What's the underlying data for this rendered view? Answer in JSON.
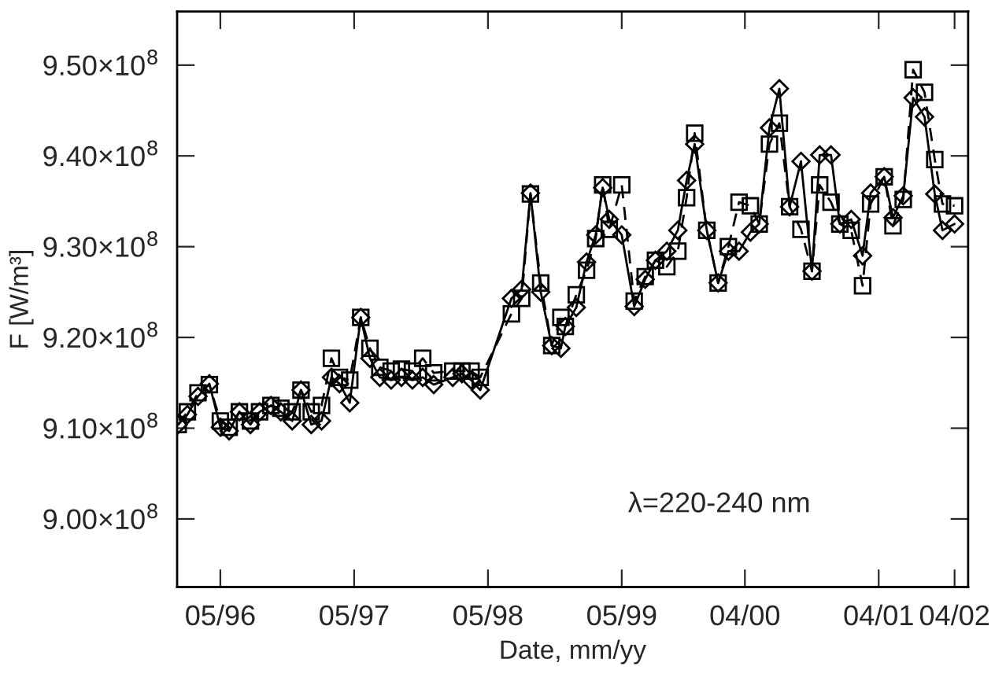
{
  "chart_data": {
    "type": "line",
    "xlabel": "Date, mm/yy",
    "ylabel": "F [W/m³]",
    "annotations": [
      "λ=220-240 nm"
    ],
    "x": [
      "1996-01-07",
      "1996-02-01",
      "1996-03-01",
      "1996-04-01",
      "1996-05-01",
      "1996-05-25",
      "1996-06-22",
      "1996-07-22",
      "1996-08-16",
      "1996-09-16",
      "1996-10-13",
      "1996-11-13",
      "1996-12-07",
      "1997-01-04",
      "1997-02-01",
      "1997-02-28",
      "1997-03-22",
      "1997-04-19",
      "1997-05-19",
      "1997-06-13",
      "1997-07-10",
      "1997-08-10",
      "1997-09-07",
      "1997-10-07",
      "1997-11-04",
      "1997-12-04",
      "1998-01-25",
      "1998-02-19",
      "1998-03-16",
      "1998-04-10",
      "1998-07-04",
      "1998-08-01",
      "1998-08-25",
      "1998-09-22",
      "1998-10-22",
      "1998-11-16",
      "1998-11-28",
      "1998-12-28",
      "1999-01-25",
      "1999-02-19",
      "1999-03-10",
      "1999-03-28",
      "1999-05-01",
      "1999-06-04",
      "1999-07-04",
      "1999-08-01",
      "1999-09-01",
      "1999-10-01",
      "1999-10-25",
      "1999-11-16",
      "1999-12-19",
      "2000-01-19",
      "2000-02-16",
      "2000-03-16",
      "2000-04-16",
      "2000-05-10",
      "2000-06-07",
      "2000-07-04",
      "2000-08-01",
      "2000-09-01",
      "2000-10-01",
      "2000-10-22",
      "2000-11-22",
      "2000-12-16",
      "2001-01-16",
      "2001-02-16",
      "2001-03-10",
      "2001-04-16",
      "2001-05-10",
      "2001-06-07",
      "2001-07-04",
      "2001-08-04",
      "2001-09-01",
      "2001-09-22",
      "2001-10-25"
    ],
    "series": [
      {
        "color": "#000000",
        "marker": "diamond",
        "line_style": "solid",
        "values": [
          910400000,
          911500000,
          913500000,
          914900000,
          910100000,
          909700000,
          911800000,
          910400000,
          911800000,
          912500000,
          911800000,
          910800000,
          914200000,
          910400000,
          910800000,
          915600000,
          914900000,
          912800000,
          922200000,
          917700000,
          915600000,
          915300000,
          915600000,
          915300000,
          915600000,
          914800000,
          915600000,
          916000000,
          915300000,
          914200000,
          924300000,
          925300000,
          935900000,
          925000000,
          919100000,
          918800000,
          921200000,
          923300000,
          928300000,
          931300000,
          936500000,
          933000000,
          931300000,
          923400000,
          926400000,
          928500000,
          929500000,
          931800000,
          937300000,
          941300000,
          931800000,
          926000000,
          929500000,
          929500000,
          931600000,
          932500000,
          943100000,
          947400000,
          934400000,
          939400000,
          927300000,
          940100000,
          940100000,
          932500000,
          933000000,
          929000000,
          935900000,
          937700000,
          933200000,
          935600000,
          946400000,
          944300000,
          935800000,
          931800000,
          932500000
        ]
      },
      {
        "color": "#000000",
        "marker": "square",
        "line_style": "dashed",
        "values": [
          910400000,
          911800000,
          913900000,
          914800000,
          910800000,
          910100000,
          911800000,
          910800000,
          911800000,
          912500000,
          912200000,
          911800000,
          914200000,
          911800000,
          912500000,
          917700000,
          915600000,
          915300000,
          922200000,
          918800000,
          916700000,
          916300000,
          916500000,
          916300000,
          917700000,
          916100000,
          916300000,
          916300000,
          916300000,
          915600000,
          922600000,
          924300000,
          935800000,
          926000000,
          919100000,
          922200000,
          921200000,
          924700000,
          927400000,
          930900000,
          936800000,
          931900000,
          936800000,
          924000000,
          926700000,
          928500000,
          927800000,
          929500000,
          935400000,
          942500000,
          931800000,
          926000000,
          930000000,
          934900000,
          934500000,
          932500000,
          941300000,
          943600000,
          934400000,
          931900000,
          927300000,
          936800000,
          934900000,
          932500000,
          931800000,
          925700000,
          934700000,
          937700000,
          932300000,
          935200000,
          949500000,
          947000000,
          939600000,
          934700000,
          934500000
        ]
      }
    ],
    "xlim": [
      "1996-01-04",
      "2001-12-01"
    ],
    "xticks": [
      {
        "value": "1996-05-01",
        "label": "05/96"
      },
      {
        "value": "1997-05-01",
        "label": "05/97"
      },
      {
        "value": "1998-05-01",
        "label": "05/98"
      },
      {
        "value": "1999-05-01",
        "label": "05/99"
      },
      {
        "value": "2000-04-01",
        "label": "04/00"
      },
      {
        "value": "2001-04-01",
        "label": "04/01"
      },
      {
        "value": "2001-10-25",
        "label": "04/02"
      }
    ],
    "ylim": [
      892500000,
      955900000
    ],
    "yticks": [
      {
        "value": 900000000,
        "label": "9.00×10$^{8}$"
      },
      {
        "value": 910000000,
        "label": "9.10×10$^{8}$"
      },
      {
        "value": 920000000,
        "label": "9.20×10$^{8}$"
      },
      {
        "value": 930000000,
        "label": "9.30×10$^{8}$"
      },
      {
        "value": 940000000,
        "label": "9.40×10$^{8}$"
      },
      {
        "value": 950000000,
        "label": "9.50×10$^{8}$"
      }
    ],
    "grid": false,
    "legend": false
  }
}
